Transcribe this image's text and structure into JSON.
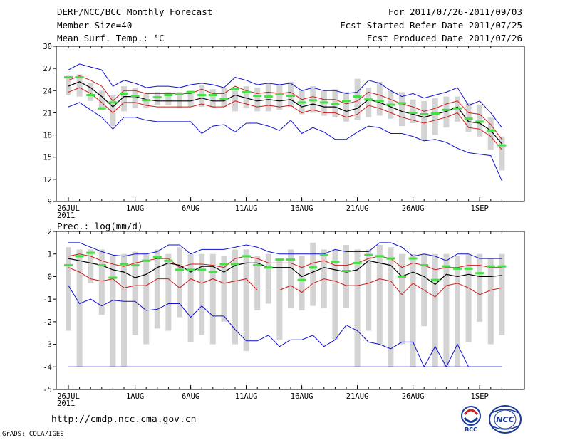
{
  "header": {
    "title": "DERF/NCC/BCC Monthly Forecast",
    "member_size": "Member Size=40",
    "variable": "Mean Surf. Temp.: °C",
    "period": "For 2011/07/26-2011/09/03",
    "fcst_started": "Fcst Started Refer Date 2011/07/25",
    "fcst_produced": "Fcst Produced Date 2011/07/26"
  },
  "footer": {
    "url": "http://cmdp.ncc.cma.gov.cn",
    "credit": "GrADS: COLA/IGES",
    "logo_bcc": "BCC",
    "logo_ncc": "NCC"
  },
  "colors": {
    "box": "#d3d3d3",
    "obs": "#44e044",
    "mean": "#000000",
    "spread": "#d01818",
    "extreme": "#1010d0"
  },
  "chart_data": [
    {
      "type": "box",
      "title": "Mean Surf. Temp.: °C",
      "ylim": [
        9,
        30
      ],
      "yticks": [
        9,
        12,
        15,
        18,
        21,
        24,
        27,
        30
      ],
      "x_tick_labels": [
        "26JUL",
        "1AUG",
        "6AUG",
        "11AUG",
        "16AUG",
        "21AUG",
        "26AUG",
        "1SEP"
      ],
      "x_tick_days": [
        0,
        6,
        11,
        16,
        21,
        26,
        31,
        37
      ],
      "x_sublabel": "2011",
      "n_days": 40,
      "series": [
        {
          "name": "box_low",
          "values": [
            23.4,
            23.2,
            22.6,
            21.4,
            19.2,
            21.2,
            21.6,
            21.6,
            22.0,
            22.0,
            21.6,
            21.8,
            21.8,
            21.6,
            21.8,
            21.2,
            21.6,
            21.2,
            21.2,
            21.4,
            21.8,
            20.8,
            21.0,
            20.6,
            20.4,
            19.8,
            20.0,
            20.4,
            20.6,
            20.2,
            19.2,
            19.6,
            17.2,
            18.0,
            19.0,
            19.8,
            18.4,
            17.8,
            16.0,
            13.2
          ]
        },
        {
          "name": "box_high",
          "values": [
            26.0,
            26.2,
            25.0,
            24.0,
            23.4,
            24.6,
            24.4,
            23.6,
            23.8,
            23.8,
            23.8,
            24.0,
            24.8,
            24.2,
            24.4,
            24.0,
            24.6,
            24.4,
            25.0,
            24.8,
            25.2,
            24.0,
            24.6,
            24.0,
            24.2,
            23.8,
            25.6,
            24.4,
            25.2,
            24.0,
            23.8,
            22.8,
            22.6,
            23.0,
            23.2,
            23.2,
            22.4,
            22.0,
            20.4,
            17.8
          ]
        },
        {
          "name": "obs",
          "values": [
            25.8,
            25.8,
            23.4,
            21.6,
            22.4,
            23.6,
            23.3,
            22.7,
            23.1,
            23.4,
            23.5,
            23.8,
            23.4,
            23.4,
            22.9,
            24.2,
            23.8,
            23.3,
            23.2,
            23.5,
            23.3,
            22.4,
            22.7,
            22.4,
            22.2,
            22.6,
            23.2,
            22.8,
            22.6,
            22.1,
            22.3,
            21.0,
            20.8,
            20.9,
            21.4,
            21.6,
            20.2,
            19.8,
            18.6,
            16.6
          ]
        },
        {
          "name": "max",
          "values": [
            26.8,
            27.6,
            27.2,
            26.8,
            24.6,
            25.4,
            25.0,
            24.4,
            24.6,
            24.6,
            24.4,
            24.8,
            25.0,
            24.8,
            24.4,
            25.8,
            25.4,
            24.8,
            25.0,
            24.8,
            25.0,
            24.0,
            24.4,
            24.0,
            24.0,
            23.6,
            23.8,
            25.4,
            25.0,
            24.0,
            23.2,
            23.6,
            23.0,
            23.4,
            23.8,
            24.4,
            22.0,
            22.6,
            21.0,
            19.0
          ]
        },
        {
          "name": "upper",
          "values": [
            25.4,
            26.0,
            25.4,
            24.6,
            22.6,
            24.0,
            24.0,
            23.6,
            23.6,
            23.6,
            23.6,
            23.6,
            24.2,
            23.6,
            23.6,
            24.6,
            24.0,
            23.6,
            23.8,
            23.6,
            23.8,
            22.8,
            23.2,
            22.8,
            22.8,
            22.2,
            22.6,
            23.8,
            23.4,
            22.8,
            22.2,
            21.8,
            21.2,
            21.6,
            22.2,
            22.6,
            21.0,
            20.8,
            19.4,
            17.4
          ]
        },
        {
          "name": "mean",
          "values": [
            24.6,
            25.2,
            24.4,
            23.2,
            21.8,
            23.2,
            23.2,
            22.8,
            22.6,
            22.6,
            22.6,
            22.6,
            23.0,
            22.6,
            22.6,
            23.4,
            23.0,
            22.6,
            22.8,
            22.6,
            22.8,
            21.8,
            22.2,
            21.8,
            21.8,
            21.2,
            21.6,
            22.8,
            22.4,
            21.8,
            21.2,
            20.8,
            20.4,
            20.8,
            21.2,
            21.8,
            19.8,
            19.6,
            18.6,
            16.8
          ]
        },
        {
          "name": "lower",
          "values": [
            23.8,
            24.4,
            23.6,
            22.4,
            21.0,
            22.4,
            22.4,
            22.0,
            21.8,
            21.8,
            21.8,
            21.8,
            22.2,
            21.8,
            21.8,
            22.6,
            22.2,
            21.8,
            22.0,
            21.8,
            22.0,
            21.0,
            21.4,
            21.0,
            21.0,
            20.4,
            20.8,
            22.0,
            21.6,
            21.0,
            20.4,
            20.0,
            19.6,
            20.0,
            20.4,
            21.0,
            19.0,
            18.8,
            17.8,
            16.0
          ]
        },
        {
          "name": "min",
          "values": [
            21.8,
            22.4,
            21.4,
            20.4,
            18.8,
            20.4,
            20.4,
            20.0,
            19.8,
            19.8,
            19.8,
            19.8,
            18.2,
            19.2,
            19.4,
            18.4,
            19.6,
            19.6,
            19.2,
            18.6,
            20.0,
            18.2,
            19.0,
            18.4,
            17.4,
            17.4,
            18.4,
            19.2,
            19.0,
            18.2,
            18.2,
            17.8,
            17.2,
            17.4,
            17.0,
            16.2,
            15.6,
            15.4,
            15.2,
            11.8
          ]
        }
      ]
    },
    {
      "type": "box",
      "title": "Prec.: log(mm/d)",
      "ylim": [
        -5,
        2
      ],
      "yticks": [
        -5,
        -4,
        -3,
        -2,
        -1,
        0,
        1,
        2
      ],
      "x_tick_labels": [
        "26JUL",
        "1AUG",
        "6AUG",
        "11AUG",
        "16AUG",
        "21AUG",
        "26AUG",
        "1SEP"
      ],
      "x_tick_days": [
        0,
        6,
        11,
        16,
        21,
        26,
        31,
        37
      ],
      "x_sublabel": "2011",
      "n_days": 40,
      "series": [
        {
          "name": "box_low",
          "values": [
            -2.4,
            -4.0,
            -0.3,
            -1.7,
            -4.0,
            -4.0,
            -2.6,
            -3.0,
            -2.3,
            -2.4,
            -1.8,
            -2.9,
            -2.6,
            -3.0,
            -2.0,
            -3.0,
            -3.3,
            -1.5,
            -1.2,
            -2.8,
            -1.4,
            -1.5,
            -1.3,
            -1.4,
            -2.8,
            -1.4,
            -4.0,
            -2.4,
            -3.0,
            -4.0,
            -3.0,
            -4.0,
            -2.2,
            -4.0,
            -4.0,
            -4.0,
            -2.9,
            -2.0,
            -3.0,
            -2.6
          ]
        },
        {
          "name": "box_high",
          "values": [
            1.3,
            1.2,
            1.2,
            1.2,
            0.9,
            1.0,
            1.1,
            1.0,
            1.2,
            1.0,
            1.3,
            1.0,
            1.0,
            1.0,
            0.9,
            1.2,
            1.2,
            0.9,
            1.0,
            0.8,
            1.2,
            0.9,
            1.5,
            1.2,
            1.2,
            1.4,
            1.2,
            1.2,
            1.4,
            1.3,
            1.0,
            1.0,
            1.0,
            1.0,
            1.0,
            0.9,
            1.0,
            1.0,
            0.8,
            1.0
          ]
        },
        {
          "name": "obs",
          "values": [
            0.5,
            0.9,
            1.05,
            0.5,
            -0.05,
            0.55,
            0.5,
            0.7,
            0.85,
            0.7,
            0.3,
            0.3,
            0.3,
            0.2,
            0.55,
            0.55,
            0.9,
            0.5,
            0.4,
            0.75,
            0.75,
            -0.15,
            0.4,
            0.95,
            0.65,
            0.25,
            0.6,
            0.95,
            0.9,
            0.8,
            0.0,
            0.8,
            0.5,
            -0.15,
            0.45,
            0.35,
            0.35,
            0.15,
            0.45,
            0.45
          ]
        },
        {
          "name": "max",
          "values": [
            1.5,
            1.5,
            1.3,
            1.1,
            0.95,
            0.9,
            1.0,
            1.0,
            1.1,
            1.4,
            1.4,
            1.0,
            1.2,
            1.2,
            1.2,
            1.3,
            1.4,
            1.3,
            1.1,
            1.0,
            1.0,
            1.0,
            1.0,
            1.0,
            1.2,
            1.1,
            1.1,
            1.1,
            1.5,
            1.5,
            1.3,
            0.9,
            1.0,
            0.9,
            0.7,
            1.0,
            1.0,
            0.8,
            0.8,
            0.8
          ]
        },
        {
          "name": "upper",
          "values": [
            0.9,
            1.0,
            0.9,
            0.7,
            0.55,
            0.45,
            0.6,
            0.7,
            0.8,
            0.8,
            0.4,
            0.55,
            0.55,
            0.5,
            0.4,
            0.8,
            0.9,
            0.8,
            0.6,
            0.6,
            0.6,
            0.4,
            0.6,
            0.7,
            0.5,
            0.5,
            0.6,
            0.8,
            0.9,
            0.8,
            0.4,
            0.6,
            0.5,
            0.3,
            0.4,
            0.4,
            0.5,
            0.5,
            0.4,
            0.4
          ]
        },
        {
          "name": "mean",
          "values": [
            0.8,
            0.7,
            0.6,
            0.5,
            0.3,
            0.2,
            -0.05,
            0.1,
            0.4,
            0.6,
            0.5,
            0.2,
            0.45,
            0.45,
            0.2,
            0.5,
            0.6,
            0.6,
            0.4,
            0.4,
            0.4,
            0.0,
            0.2,
            0.4,
            0.3,
            0.2,
            0.3,
            0.7,
            0.6,
            0.5,
            0.0,
            0.2,
            0.0,
            -0.35,
            0.1,
            0.0,
            0.1,
            0.0,
            0.0,
            0.05
          ]
        },
        {
          "name": "lower",
          "values": [
            0.4,
            0.2,
            -0.1,
            -0.2,
            -0.1,
            -0.5,
            -0.4,
            -0.4,
            -0.1,
            -0.1,
            -0.5,
            -0.1,
            -0.3,
            -0.1,
            -0.3,
            -0.2,
            -0.1,
            -0.6,
            -0.6,
            -0.6,
            -0.4,
            -0.7,
            -0.3,
            -0.1,
            -0.2,
            -0.4,
            -0.4,
            -0.3,
            -0.1,
            -0.2,
            -0.8,
            -0.3,
            -0.6,
            -0.9,
            -0.4,
            -0.3,
            -0.5,
            -0.8,
            -0.6,
            -0.5
          ]
        },
        {
          "name": "min",
          "values": [
            -0.4,
            -1.2,
            -1.0,
            -1.3,
            -1.05,
            -1.1,
            -1.1,
            -1.5,
            -1.45,
            -1.2,
            -1.2,
            -1.8,
            -1.3,
            -1.75,
            -1.75,
            -2.35,
            -2.85,
            -2.85,
            -2.6,
            -3.1,
            -2.8,
            -2.8,
            -2.6,
            -3.1,
            -2.8,
            -2.15,
            -2.4,
            -2.9,
            -3.0,
            -3.2,
            -2.9,
            -2.9,
            -4.0,
            -3.1,
            -4.0,
            -3.0,
            -4.0,
            -4.0,
            -4.0,
            -4.0
          ]
        },
        {
          "name": "floor",
          "values": [
            -4.0,
            -4.0,
            -4.0,
            -4.0,
            -4.0,
            -4.0,
            -4.0,
            -4.0,
            -4.0,
            -4.0,
            -4.0,
            -4.0,
            -4.0,
            -4.0,
            -4.0,
            -4.0,
            -4.0,
            -4.0,
            -4.0,
            -4.0,
            -4.0,
            -4.0,
            -4.0,
            -4.0,
            -4.0,
            -4.0,
            -4.0,
            -4.0,
            -4.0,
            -4.0,
            -4.0,
            -4.0,
            -4.0,
            -4.0,
            -4.0,
            -4.0,
            -4.0,
            -4.0,
            -4.0,
            -4.0
          ]
        }
      ]
    }
  ]
}
